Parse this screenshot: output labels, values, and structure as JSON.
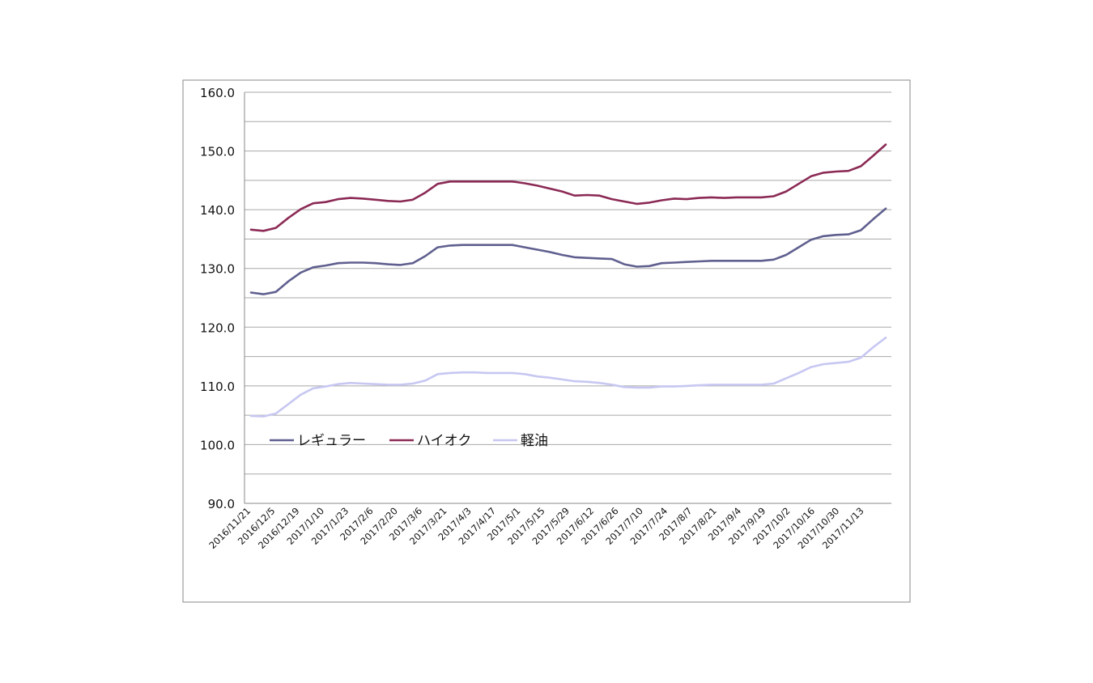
{
  "chart_data": {
    "type": "line",
    "title": "",
    "xlabel": "",
    "ylabel": "",
    "ylim": [
      90,
      160
    ],
    "yticks": [
      "90.0",
      "100.0",
      "110.0",
      "120.0",
      "130.0",
      "140.0",
      "150.0",
      "160.0"
    ],
    "grid": "horizontal",
    "legend_position": "lower-left",
    "x_tick_labels": [
      "2016/11/21",
      "2016/12/5",
      "2016/12/19",
      "2017/1/10",
      "2017/1/23",
      "2017/2/6",
      "2017/2/20",
      "2017/3/6",
      "2017/3/21",
      "2017/4/3",
      "2017/4/17",
      "2017/5/1",
      "2017/5/15",
      "2017/5/29",
      "2017/6/12",
      "2017/6/26",
      "2017/7/10",
      "2017/7/24",
      "2017/8/7",
      "2017/8/21",
      "2017/9/4",
      "2017/9/19",
      "2017/10/2",
      "2017/10/16",
      "2017/10/30",
      "2017/11/13"
    ],
    "series": [
      {
        "name": "レギュラー",
        "color": "#5f5f8f",
        "values": [
          125.9,
          125.6,
          126.0,
          127.8,
          129.3,
          130.2,
          130.5,
          130.9,
          131.0,
          131.0,
          130.9,
          130.7,
          130.6,
          130.9,
          132.1,
          133.6,
          133.9,
          134.0,
          134.0,
          134.0,
          134.0,
          134.0,
          133.6,
          133.2,
          132.8,
          132.3,
          131.9,
          131.8,
          131.7,
          131.6,
          130.7,
          130.3,
          130.4,
          130.9,
          131.0,
          131.1,
          131.2,
          131.3,
          131.3,
          131.3,
          131.3,
          131.3,
          131.5,
          132.3,
          133.6,
          134.9,
          135.5,
          135.7,
          135.8,
          136.5,
          138.4,
          140.2
        ]
      },
      {
        "name": "ハイオク",
        "color": "#8b2a55",
        "values": [
          136.6,
          136.4,
          136.9,
          138.6,
          140.1,
          141.1,
          141.3,
          141.8,
          142.0,
          141.9,
          141.7,
          141.5,
          141.4,
          141.7,
          142.9,
          144.4,
          144.8,
          144.8,
          144.8,
          144.8,
          144.8,
          144.8,
          144.5,
          144.1,
          143.6,
          143.1,
          142.4,
          142.5,
          142.4,
          141.8,
          141.4,
          141.0,
          141.2,
          141.6,
          141.9,
          141.8,
          142.0,
          142.1,
          142.0,
          142.1,
          142.1,
          142.1,
          142.3,
          143.1,
          144.4,
          145.7,
          146.3,
          146.5,
          146.6,
          147.4,
          149.2,
          151.1
        ]
      },
      {
        "name": "軽油",
        "color": "#c7c7f2",
        "values": [
          104.9,
          104.8,
          105.3,
          106.9,
          108.5,
          109.6,
          109.9,
          110.3,
          110.5,
          110.4,
          110.3,
          110.2,
          110.2,
          110.4,
          110.9,
          112.0,
          112.2,
          112.3,
          112.3,
          112.2,
          112.2,
          112.2,
          112.0,
          111.6,
          111.4,
          111.1,
          110.8,
          110.7,
          110.5,
          110.2,
          109.8,
          109.7,
          109.7,
          109.9,
          109.9,
          110.0,
          110.1,
          110.2,
          110.2,
          110.2,
          110.2,
          110.2,
          110.4,
          111.3,
          112.2,
          113.2,
          113.7,
          113.9,
          114.1,
          114.8,
          116.6,
          118.2
        ]
      }
    ]
  }
}
